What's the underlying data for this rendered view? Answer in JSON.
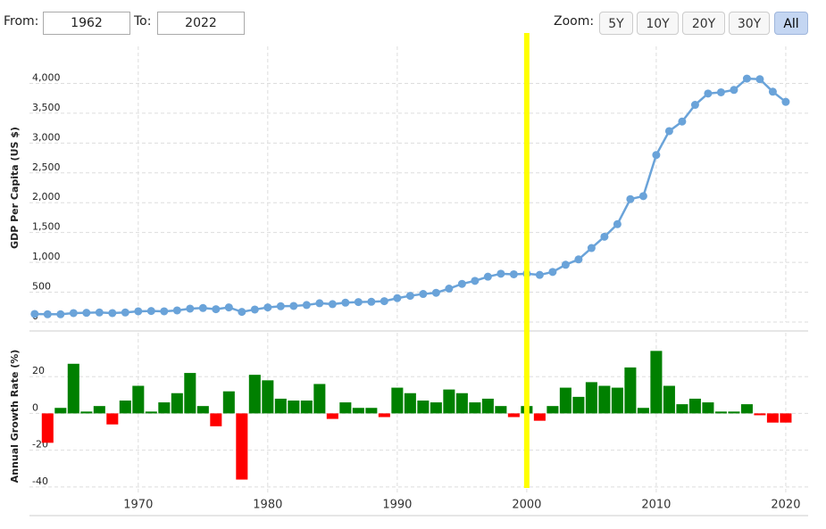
{
  "controls": {
    "from_label": "From:",
    "from_value": "1962",
    "to_label": "To:",
    "to_value": "2022",
    "zoom_label": "Zoom:",
    "zoom_buttons": [
      "5Y",
      "10Y",
      "20Y",
      "30Y",
      "All"
    ],
    "active_zoom": "All"
  },
  "marker_line": {
    "x": 2000,
    "color": "#ffff00"
  },
  "chart_data": [
    {
      "type": "line",
      "y_label": "GDP Per Capita (US $)",
      "x": [
        1962,
        1963,
        1964,
        1965,
        1966,
        1967,
        1968,
        1969,
        1970,
        1971,
        1972,
        1973,
        1974,
        1975,
        1976,
        1977,
        1978,
        1979,
        1980,
        1981,
        1982,
        1983,
        1984,
        1985,
        1986,
        1987,
        1988,
        1989,
        1990,
        1991,
        1992,
        1993,
        1994,
        1995,
        1996,
        1997,
        1998,
        1999,
        2000,
        2001,
        2002,
        2003,
        2004,
        2005,
        2006,
        2007,
        2008,
        2009,
        2010,
        2011,
        2012,
        2013,
        2014,
        2015,
        2016,
        2017,
        2018,
        2019,
        2020
      ],
      "series": [
        {
          "name": "GDP Per Capita",
          "color": "#6aa3d9",
          "values": [
            135,
            130,
            130,
            150,
            155,
            160,
            150,
            160,
            180,
            185,
            180,
            195,
            225,
            235,
            215,
            245,
            170,
            210,
            245,
            265,
            270,
            285,
            315,
            300,
            325,
            335,
            340,
            350,
            400,
            440,
            470,
            490,
            560,
            640,
            690,
            760,
            810,
            800,
            810,
            790,
            840,
            960,
            1050,
            1240,
            1430,
            1640,
            2060,
            2110,
            2800,
            3200,
            3360,
            3640,
            3830,
            3850,
            3890,
            4080,
            4070,
            3860,
            3690
          ]
        }
      ],
      "xlim": [
        1961.6,
        2020.35
      ],
      "ylim": [
        0,
        4500
      ],
      "yticks": [
        0,
        500,
        {
          "value": 1000,
          "label": "1,000"
        },
        {
          "value": 1500,
          "label": "1,500"
        },
        {
          "value": 2000,
          "label": "2,000"
        },
        {
          "value": 2500,
          "label": "2,500"
        },
        {
          "value": 3000,
          "label": "3,000"
        },
        {
          "value": 3500,
          "label": "3,500"
        },
        {
          "value": 4000,
          "label": "4,000"
        }
      ],
      "grid": true
    },
    {
      "type": "bar",
      "y_label": "Annual Growth Rate (%)",
      "x": [
        1963,
        1964,
        1965,
        1966,
        1967,
        1968,
        1969,
        1970,
        1971,
        1972,
        1973,
        1974,
        1975,
        1976,
        1977,
        1978,
        1979,
        1980,
        1981,
        1982,
        1983,
        1984,
        1985,
        1986,
        1987,
        1988,
        1989,
        1990,
        1991,
        1992,
        1993,
        1994,
        1995,
        1996,
        1997,
        1998,
        1999,
        2000,
        2001,
        2002,
        2003,
        2004,
        2005,
        2006,
        2007,
        2008,
        2009,
        2010,
        2011,
        2012,
        2013,
        2014,
        2015,
        2016,
        2017,
        2018,
        2019,
        2020
      ],
      "values": [
        -16,
        3,
        27,
        1,
        4,
        -6,
        7,
        15,
        1,
        6,
        11,
        22,
        4,
        -7,
        12,
        -36,
        21,
        18,
        8,
        7,
        7,
        16,
        -3,
        6,
        3,
        3,
        -2,
        14,
        11,
        7,
        6,
        13,
        11,
        6,
        8,
        4,
        -2,
        4,
        -4,
        4,
        14,
        9,
        17,
        15,
        14,
        25,
        3,
        34,
        15,
        5,
        8,
        6,
        1,
        1,
        5,
        -1,
        -5,
        -5
      ],
      "positive_color": "#008000",
      "negative_color": "#ff0000",
      "xlim": [
        1961.6,
        2020.35
      ],
      "xticks": [
        1970,
        1980,
        1990,
        2000,
        2010,
        2020
      ],
      "ylim": [
        -43,
        40
      ],
      "yticks": [
        -40,
        -20,
        0,
        20
      ],
      "grid": true
    }
  ]
}
